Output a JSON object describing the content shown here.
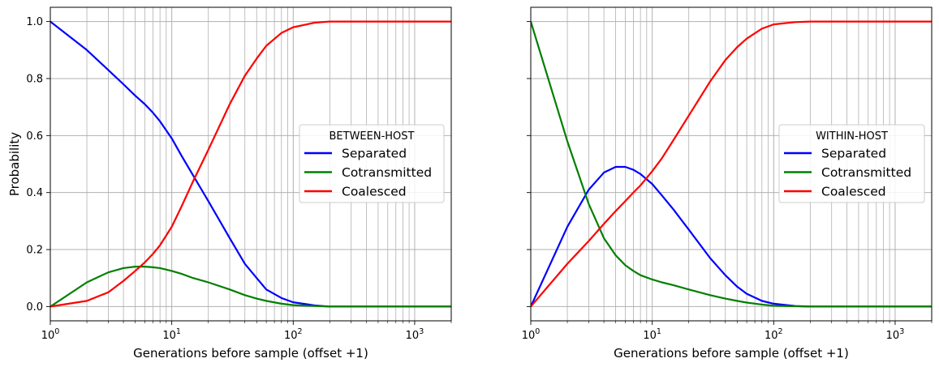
{
  "chart_data": [
    {
      "type": "line",
      "legend_title": "BETWEEN-HOST",
      "legend_position": "center-right",
      "xlabel": "Generations before sample (offset +1)",
      "ylabel": "Probability",
      "xscale": "log",
      "xlim": [
        1,
        2000
      ],
      "ylim": [
        -0.05,
        1.05
      ],
      "grid": true,
      "x_ticks": [
        1,
        10,
        100,
        1000
      ],
      "x_tick_labels": [
        [
          "10",
          "0"
        ],
        [
          "10",
          "1"
        ],
        [
          "10",
          "2"
        ],
        [
          "10",
          "3"
        ]
      ],
      "y_ticks": [
        0.0,
        0.2,
        0.4,
        0.6,
        0.8,
        1.0
      ],
      "y_tick_labels": [
        "0.0",
        "0.2",
        "0.4",
        "0.6",
        "0.8",
        "1.0"
      ],
      "series": [
        {
          "name": "Separated",
          "color": "#0000ff",
          "x": [
            1,
            2,
            3,
            4,
            5,
            6,
            7,
            8,
            10,
            12,
            15,
            20,
            30,
            40,
            50,
            60,
            80,
            100,
            150,
            200,
            500,
            1000,
            2000
          ],
          "y": [
            1.0,
            0.9,
            0.83,
            0.78,
            0.74,
            0.71,
            0.68,
            0.65,
            0.59,
            0.53,
            0.46,
            0.37,
            0.24,
            0.15,
            0.1,
            0.06,
            0.03,
            0.015,
            0.004,
            0.0,
            0.0,
            0.0,
            0.0
          ]
        },
        {
          "name": "Cotransmitted",
          "color": "#008000",
          "x": [
            1,
            2,
            3,
            4,
            5,
            6,
            7,
            8,
            10,
            12,
            15,
            20,
            30,
            40,
            50,
            60,
            80,
            100,
            150,
            200,
            500,
            1000,
            2000
          ],
          "y": [
            0.0,
            0.085,
            0.12,
            0.135,
            0.14,
            0.14,
            0.138,
            0.135,
            0.125,
            0.115,
            0.1,
            0.085,
            0.06,
            0.04,
            0.028,
            0.02,
            0.01,
            0.005,
            0.002,
            0.0,
            0.0,
            0.0,
            0.0
          ]
        },
        {
          "name": "Coalesced",
          "color": "#ff0000",
          "x": [
            1,
            2,
            3,
            4,
            5,
            6,
            7,
            8,
            10,
            12,
            15,
            20,
            30,
            40,
            50,
            60,
            80,
            100,
            150,
            200,
            500,
            1000,
            2000
          ],
          "y": [
            0.0,
            0.02,
            0.05,
            0.09,
            0.125,
            0.155,
            0.185,
            0.215,
            0.28,
            0.35,
            0.44,
            0.55,
            0.71,
            0.81,
            0.87,
            0.915,
            0.96,
            0.98,
            0.996,
            1.0,
            1.0,
            1.0,
            1.0
          ]
        }
      ]
    },
    {
      "type": "line",
      "legend_title": "WITHIN-HOST",
      "legend_position": "center-right",
      "xlabel": "Generations before sample (offset +1)",
      "ylabel": "",
      "xscale": "log",
      "xlim": [
        1,
        2000
      ],
      "ylim": [
        -0.05,
        1.05
      ],
      "grid": true,
      "shared_y": true,
      "x_ticks": [
        1,
        10,
        100,
        1000
      ],
      "x_tick_labels": [
        [
          "10",
          "0"
        ],
        [
          "10",
          "1"
        ],
        [
          "10",
          "2"
        ],
        [
          "10",
          "3"
        ]
      ],
      "y_ticks": [
        0.0,
        0.2,
        0.4,
        0.6,
        0.8,
        1.0
      ],
      "series": [
        {
          "name": "Separated",
          "color": "#0000ff",
          "x": [
            1,
            2,
            3,
            4,
            5,
            6,
            7,
            8,
            10,
            12,
            15,
            20,
            30,
            40,
            50,
            60,
            80,
            100,
            150,
            200,
            500,
            1000,
            2000
          ],
          "y": [
            0.0,
            0.28,
            0.41,
            0.47,
            0.49,
            0.49,
            0.48,
            0.465,
            0.43,
            0.39,
            0.34,
            0.27,
            0.17,
            0.11,
            0.07,
            0.045,
            0.02,
            0.01,
            0.002,
            0.0,
            0.0,
            0.0,
            0.0
          ]
        },
        {
          "name": "Cotransmitted",
          "color": "#008000",
          "x": [
            1,
            2,
            3,
            4,
            5,
            6,
            7,
            8,
            10,
            12,
            15,
            20,
            30,
            40,
            50,
            60,
            80,
            100,
            150,
            200,
            500,
            1000,
            2000
          ],
          "y": [
            1.0,
            0.58,
            0.36,
            0.24,
            0.18,
            0.145,
            0.125,
            0.11,
            0.095,
            0.085,
            0.075,
            0.06,
            0.04,
            0.028,
            0.02,
            0.014,
            0.007,
            0.003,
            0.001,
            0.0,
            0.0,
            0.0,
            0.0
          ]
        },
        {
          "name": "Coalesced",
          "color": "#ff0000",
          "x": [
            1,
            2,
            3,
            4,
            5,
            6,
            7,
            8,
            10,
            12,
            15,
            20,
            30,
            40,
            50,
            60,
            80,
            100,
            150,
            200,
            500,
            1000,
            2000
          ],
          "y": [
            0.0,
            0.15,
            0.23,
            0.29,
            0.335,
            0.37,
            0.4,
            0.425,
            0.475,
            0.52,
            0.585,
            0.67,
            0.79,
            0.865,
            0.91,
            0.94,
            0.975,
            0.99,
            0.998,
            1.0,
            1.0,
            1.0,
            1.0
          ]
        }
      ]
    }
  ]
}
